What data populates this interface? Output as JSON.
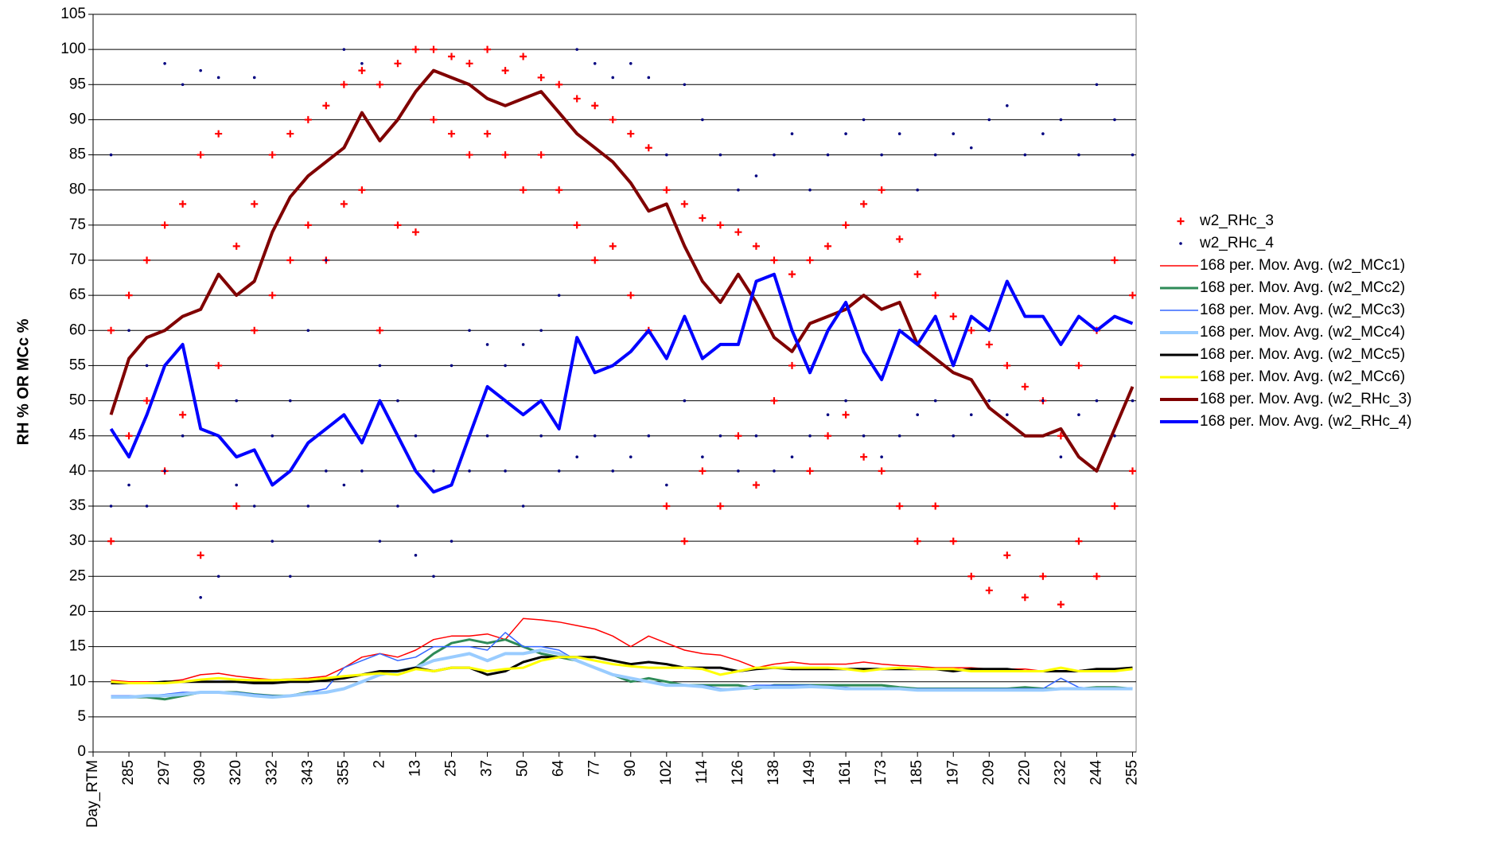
{
  "chart_data": {
    "type": "combo",
    "y_label": "RH % OR MCc %",
    "xlim": [
      0,
      29.1
    ],
    "xticks": [
      {
        "value": 0,
        "label": "Day_RTM"
      },
      {
        "value": 1,
        "label": "285"
      },
      {
        "value": 2,
        "label": "297"
      },
      {
        "value": 3,
        "label": "309"
      },
      {
        "value": 4,
        "label": "320"
      },
      {
        "value": 5,
        "label": "332"
      },
      {
        "value": 6,
        "label": "343"
      },
      {
        "value": 7,
        "label": "355"
      },
      {
        "value": 8,
        "label": "2"
      },
      {
        "value": 9,
        "label": "13"
      },
      {
        "value": 10,
        "label": "25"
      },
      {
        "value": 11,
        "label": "37"
      },
      {
        "value": 12,
        "label": "50"
      },
      {
        "value": 13,
        "label": "64"
      },
      {
        "value": 14,
        "label": "77"
      },
      {
        "value": 15,
        "label": "90"
      },
      {
        "value": 16,
        "label": "102"
      },
      {
        "value": 17,
        "label": "114"
      },
      {
        "value": 18,
        "label": "126"
      },
      {
        "value": 19,
        "label": "138"
      },
      {
        "value": 20,
        "label": "149"
      },
      {
        "value": 21,
        "label": "161"
      },
      {
        "value": 22,
        "label": "173"
      },
      {
        "value": 23,
        "label": "185"
      },
      {
        "value": 24,
        "label": "197"
      },
      {
        "value": 25,
        "label": "209"
      },
      {
        "value": 26,
        "label": "220"
      },
      {
        "value": 27,
        "label": "232"
      },
      {
        "value": 28,
        "label": "244"
      },
      {
        "value": 29,
        "label": "255"
      }
    ],
    "ylim": [
      0,
      105
    ],
    "yticks": [
      0,
      5,
      10,
      15,
      20,
      25,
      30,
      35,
      40,
      45,
      50,
      55,
      60,
      65,
      70,
      75,
      80,
      85,
      90,
      95,
      100,
      105
    ],
    "grid": true,
    "legend": "right",
    "x": [
      0.5,
      1,
      1.5,
      2,
      2.5,
      3,
      3.5,
      4,
      4.5,
      5,
      5.5,
      6,
      6.5,
      7,
      7.5,
      8,
      8.5,
      9,
      9.5,
      10,
      10.5,
      11,
      11.5,
      12,
      12.5,
      13,
      13.5,
      14,
      14.5,
      15,
      15.5,
      16,
      16.5,
      17,
      17.5,
      18,
      18.5,
      19,
      19.5,
      20,
      20.5,
      21,
      21.5,
      22,
      22.5,
      23,
      23.5,
      24,
      24.5,
      25,
      25.5,
      26,
      26.5,
      27,
      27.5,
      28,
      28.5,
      29
    ],
    "series": [
      {
        "name": "w2_RHc_3",
        "type": "scatter",
        "marker": "plus",
        "color": "#ff0000",
        "x": [
          0.5,
          0.5,
          1,
          1,
          1.5,
          1.5,
          2,
          2,
          2.5,
          2.5,
          3,
          3,
          3.5,
          3.5,
          4,
          4,
          4.5,
          4.5,
          5,
          5,
          5.5,
          5.5,
          6,
          6,
          6.5,
          6.5,
          7,
          7,
          7.5,
          7.5,
          8,
          8,
          8.5,
          8.5,
          9,
          9,
          9.5,
          9.5,
          10,
          10,
          10.5,
          10.5,
          11,
          11,
          11.5,
          11.5,
          12,
          12,
          12.5,
          12.5,
          13,
          13,
          13.5,
          13.5,
          14,
          14,
          14.5,
          14.5,
          15,
          15,
          15.5,
          15.5,
          16,
          16,
          16.5,
          16.5,
          17,
          17,
          17.5,
          17.5,
          18,
          18,
          18.5,
          18.5,
          19,
          19,
          19.5,
          19.5,
          20,
          20,
          20.5,
          20.5,
          21,
          21,
          21.5,
          21.5,
          22,
          22,
          22.5,
          22.5,
          23,
          23,
          23.5,
          23.5,
          24,
          24,
          24.5,
          24.5,
          25,
          25,
          25.5,
          25.5,
          26,
          26,
          26.5,
          26.5,
          27,
          27,
          27.5,
          27.5,
          28,
          28,
          28.5,
          28.5,
          29,
          29
        ],
        "values": [
          60,
          30,
          65,
          45,
          70,
          50,
          75,
          40,
          78,
          48,
          85,
          28,
          88,
          55,
          72,
          35,
          78,
          60,
          85,
          65,
          88,
          70,
          90,
          75,
          92,
          70,
          95,
          78,
          97,
          80,
          95,
          60,
          98,
          75,
          100,
          74,
          100,
          90,
          99,
          88,
          98,
          85,
          100,
          88,
          97,
          85,
          99,
          80,
          96,
          85,
          95,
          80,
          93,
          75,
          92,
          70,
          90,
          72,
          88,
          65,
          86,
          60,
          80,
          35,
          78,
          30,
          76,
          40,
          75,
          35,
          74,
          45,
          72,
          38,
          70,
          50,
          68,
          55,
          70,
          40,
          72,
          45,
          75,
          48,
          78,
          42,
          80,
          40,
          73,
          35,
          68,
          30,
          65,
          35,
          62,
          30,
          60,
          25,
          58,
          23,
          55,
          28,
          52,
          22,
          50,
          25,
          45,
          21,
          55,
          30,
          60,
          25,
          70,
          35,
          65,
          40
        ]
      },
      {
        "name": "w2_RHc_4",
        "type": "scatter",
        "marker": "dot",
        "color": "#000080",
        "x": [
          0.5,
          0.5,
          1,
          1,
          1.5,
          1.5,
          2,
          2,
          2.5,
          2.5,
          3,
          3,
          3.5,
          3.5,
          4,
          4,
          4.5,
          4.5,
          5,
          5,
          5.5,
          5.5,
          6,
          6,
          6.5,
          6.5,
          7,
          7,
          7.5,
          7.5,
          8,
          8,
          8.5,
          8.5,
          9,
          9,
          9.5,
          9.5,
          10,
          10,
          10.5,
          10.5,
          11,
          11,
          11.5,
          11.5,
          12,
          12,
          12.5,
          12.5,
          13,
          13,
          13.5,
          13.5,
          14,
          14,
          14.5,
          14.5,
          15,
          15,
          15.5,
          15.5,
          16,
          16,
          16.5,
          16.5,
          17,
          17,
          17.5,
          17.5,
          18,
          18,
          18.5,
          18.5,
          19,
          19,
          19.5,
          19.5,
          20,
          20,
          20.5,
          20.5,
          21,
          21,
          21.5,
          21.5,
          22,
          22,
          22.5,
          22.5,
          23,
          23,
          23.5,
          23.5,
          24,
          24,
          24.5,
          24.5,
          25,
          25,
          25.5,
          25.5,
          26,
          26,
          26.5,
          26.5,
          27,
          27,
          27.5,
          27.5,
          28,
          28,
          28.5,
          28.5,
          29,
          29
        ],
        "values": [
          85,
          35,
          60,
          38,
          55,
          35,
          98,
          40,
          95,
          45,
          97,
          22,
          96,
          25,
          50,
          38,
          96,
          35,
          45,
          30,
          50,
          25,
          60,
          35,
          70,
          40,
          100,
          38,
          98,
          40,
          55,
          30,
          50,
          35,
          45,
          28,
          40,
          25,
          55,
          30,
          60,
          40,
          58,
          45,
          55,
          40,
          58,
          35,
          60,
          45,
          65,
          40,
          100,
          42,
          98,
          45,
          96,
          40,
          98,
          42,
          96,
          45,
          85,
          38,
          95,
          50,
          90,
          42,
          85,
          45,
          80,
          40,
          82,
          45,
          85,
          40,
          88,
          42,
          80,
          45,
          85,
          48,
          88,
          50,
          90,
          45,
          85,
          42,
          88,
          45,
          80,
          48,
          85,
          50,
          88,
          45,
          86,
          48,
          90,
          50,
          92,
          48,
          85,
          45,
          88,
          50,
          90,
          42,
          85,
          48,
          95,
          50,
          90,
          45,
          85,
          50
        ]
      },
      {
        "name": "168 per. Mov. Avg. (w2_MCc1)",
        "type": "line",
        "line_width": 1.5,
        "color": "#ff0000",
        "values": [
          10.2,
          10,
          10,
          10,
          10.3,
          11,
          11.2,
          10.8,
          10.5,
          10.3,
          10.4,
          10.5,
          10.8,
          12,
          13.5,
          14,
          13.5,
          14.5,
          16,
          16.5,
          16.5,
          16.8,
          16,
          19,
          18.8,
          18.5,
          18,
          17.5,
          16.5,
          15,
          16.5,
          15.5,
          14.5,
          14,
          13.8,
          13,
          12,
          12.5,
          12.8,
          12.5,
          12.5,
          12.5,
          12.8,
          12.5,
          12.3,
          12.2,
          12,
          12,
          12,
          11.8,
          11.8,
          11.8,
          11.5,
          11.5,
          11.6,
          11.8,
          11.8,
          11.8
        ]
      },
      {
        "name": "168 per. Mov. Avg. (w2_MCc2)",
        "type": "line",
        "line_width": 3,
        "color": "#2e8b57",
        "values": [
          7.8,
          7.8,
          7.8,
          7.5,
          8,
          8.5,
          8.5,
          8.5,
          8.2,
          8,
          8,
          8.5,
          8.5,
          9,
          10,
          11,
          11.5,
          12,
          14,
          15.5,
          16,
          15.5,
          16,
          15,
          14,
          13.5,
          13,
          12,
          11,
          10,
          10.5,
          10,
          9.5,
          9.5,
          9.5,
          9.5,
          9,
          9.5,
          9.5,
          9.5,
          9.5,
          9.5,
          9.5,
          9.5,
          9.2,
          9,
          9,
          9,
          9,
          9,
          9,
          9.2,
          9,
          9,
          9,
          9.2,
          9.2,
          9
        ]
      },
      {
        "name": "168 per. Mov. Avg. (w2_MCc3)",
        "type": "line",
        "line_width": 1.5,
        "color": "#3366ff",
        "values": [
          8,
          8,
          8,
          8.2,
          8.5,
          8.5,
          8.5,
          8.5,
          8.2,
          8,
          8,
          8.5,
          9,
          12,
          13,
          14,
          13,
          13.5,
          15,
          15,
          15,
          14.5,
          17,
          15,
          15,
          14.5,
          13,
          12,
          11,
          10.5,
          10,
          9.5,
          9.5,
          9.5,
          9,
          9,
          9.5,
          9.5,
          9.5,
          9.5,
          9.3,
          9.2,
          9,
          9,
          9,
          9,
          9,
          9,
          9,
          9,
          9,
          9,
          9,
          10.5,
          9.2,
          9,
          9,
          9
        ]
      },
      {
        "name": "168 per. Mov. Avg. (w2_MCc4)",
        "type": "line",
        "line_width": 4,
        "color": "#99ccff",
        "values": [
          7.8,
          7.8,
          8,
          8,
          8.2,
          8.5,
          8.5,
          8.3,
          8,
          7.8,
          8,
          8.3,
          8.5,
          9,
          10,
          11,
          11.5,
          12,
          13,
          13.5,
          14,
          13,
          14,
          14,
          14.5,
          14,
          13,
          12,
          11,
          10.5,
          10,
          9.5,
          9.5,
          9.3,
          8.8,
          9,
          9.2,
          9.2,
          9.2,
          9.3,
          9.2,
          9,
          9,
          9,
          9,
          8.8,
          8.8,
          8.8,
          8.8,
          8.8,
          8.8,
          8.8,
          8.8,
          9,
          9,
          9,
          9,
          9
        ]
      },
      {
        "name": "168 per. Mov. Avg. (w2_MCc5)",
        "type": "line",
        "line_width": 3,
        "color": "#000000",
        "values": [
          9.8,
          9.8,
          9.8,
          10,
          10,
          10,
          10,
          10,
          9.8,
          9.8,
          10,
          10,
          10.2,
          10.5,
          11,
          11.5,
          11.5,
          12,
          11.5,
          12,
          12,
          11,
          11.5,
          12.8,
          13.5,
          13.5,
          13.5,
          13.5,
          13,
          12.5,
          12.8,
          12.5,
          12,
          12,
          12,
          11.5,
          11.8,
          12,
          11.8,
          11.8,
          11.8,
          11.8,
          11.8,
          11.8,
          11.8,
          11.8,
          11.8,
          11.5,
          11.8,
          11.8,
          11.8,
          11.5,
          11.5,
          11.5,
          11.5,
          11.8,
          11.8,
          12
        ]
      },
      {
        "name": "168 per. Mov. Avg. (w2_MCc6)",
        "type": "line",
        "line_width": 3,
        "color": "#ffff00",
        "values": [
          10,
          9.8,
          9.8,
          9.8,
          10,
          10.3,
          10.5,
          10.3,
          10.2,
          10.2,
          10.3,
          10.3,
          10.5,
          10.8,
          11,
          11.2,
          11,
          11.8,
          11.5,
          12,
          12,
          11.5,
          11.8,
          12,
          13,
          13.5,
          13.5,
          13,
          12.5,
          12.2,
          12,
          12,
          12,
          11.8,
          11,
          11.5,
          12,
          12,
          12,
          12,
          12,
          11.8,
          11.5,
          11.8,
          12,
          11.8,
          11.8,
          11.8,
          11.5,
          11.5,
          11.5,
          11.5,
          11.5,
          12,
          11.5,
          11.5,
          11.5,
          11.8
        ]
      },
      {
        "name": "168 per. Mov. Avg. (w2_RHc_3)",
        "type": "line",
        "line_width": 4,
        "color": "#800000",
        "values": [
          48,
          56,
          59,
          60,
          62,
          63,
          68,
          65,
          67,
          74,
          79,
          82,
          84,
          86,
          91,
          87,
          90,
          94,
          97,
          96,
          95,
          93,
          92,
          93,
          94,
          91,
          88,
          86,
          84,
          81,
          77,
          78,
          72,
          67,
          64,
          68,
          64,
          59,
          57,
          61,
          62,
          63,
          65,
          63,
          64,
          58,
          56,
          54,
          53,
          49,
          47,
          45,
          45,
          46,
          42,
          40,
          46,
          52
        ]
      },
      {
        "name": "168 per. Mov. Avg. (w2_RHc_4)",
        "type": "line",
        "line_width": 4,
        "color": "#0000ff",
        "values": [
          46,
          42,
          48,
          55,
          58,
          46,
          45,
          42,
          43,
          38,
          40,
          44,
          46,
          48,
          44,
          50,
          45,
          40,
          37,
          38,
          45,
          52,
          50,
          48,
          50,
          46,
          59,
          54,
          55,
          57,
          60,
          56,
          62,
          56,
          58,
          58,
          67,
          68,
          60,
          54,
          60,
          64,
          57,
          53,
          60,
          58,
          62,
          55,
          62,
          60,
          67,
          62,
          62,
          58,
          62,
          60,
          62,
          61
        ]
      }
    ]
  }
}
